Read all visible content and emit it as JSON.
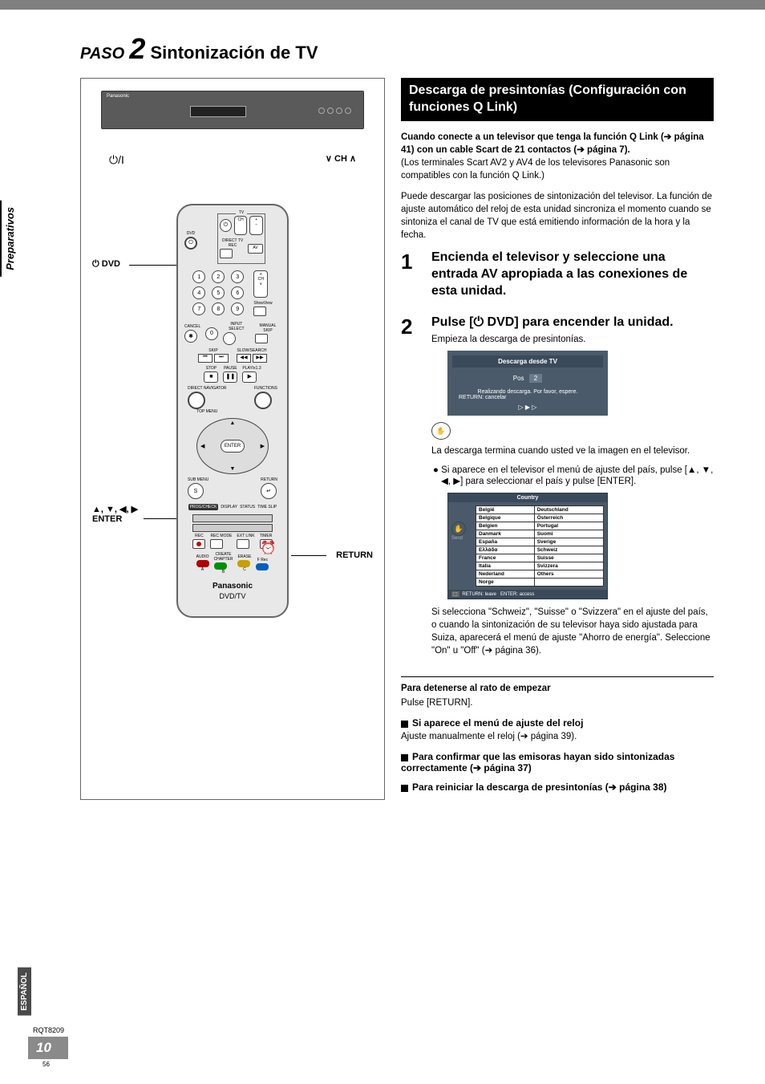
{
  "title": {
    "step_word": "PASO",
    "step_num": "2",
    "step_text": "Sintonización de TV"
  },
  "sidebar": {
    "section": "Preparativos",
    "lang": "ESPAÑOL"
  },
  "diagram": {
    "device_brand": "Panasonic",
    "power_icon": "⏻/I",
    "ch_label": "∨ CH ∧",
    "callouts": {
      "dvd": "⏻ DVD",
      "enter": "▲, ▼, ◀, ▶\nENTER",
      "return": "RETURN"
    },
    "remote": {
      "dvd_label": "DVD",
      "tv_label": "TV",
      "ch": "CH",
      "volume": "VOLUME",
      "direct_rec": "DIRECT TV REC",
      "av": "AV",
      "showview": "ShowView",
      "cancel": "CANCEL",
      "input_select": "INPUT SELECT",
      "manual_skip": "MANUAL SKIP",
      "skip": "SKIP",
      "slow": "SLOW/SEARCH",
      "stop": "STOP",
      "pause": "PAUSE",
      "play": "PLAY/x1.3",
      "direct_nav": "DIRECT NAVIGATOR",
      "functions": "FUNCTIONS",
      "top_menu": "TOP MENU",
      "enter": "ENTER",
      "sub_menu": "SUB MENU",
      "return": "RETURN",
      "prog_check": "PROG/CHECK",
      "display": "DISPLAY",
      "status": "STATUS",
      "time_slip": "TIME SLIP",
      "rec": "REC",
      "rec_mode": "REC MODE",
      "ext_link": "EXT LINK",
      "timer": "TIMER",
      "audio": "AUDIO",
      "create_chapter": "CREATE\nCHAPTER",
      "erase": "ERASE",
      "f_rec": "F Rec",
      "a": "A",
      "b": "B",
      "c": "C",
      "brand": "Panasonic",
      "model": "DVD/TV",
      "nums": [
        "1",
        "2",
        "3",
        "4",
        "5",
        "6",
        "7",
        "8",
        "9",
        "0"
      ],
      "s": "S",
      "colors": [
        "#b00000",
        "#009000",
        "#0060c0",
        "#c8a000"
      ]
    }
  },
  "right": {
    "header": "Descarga de presintonías (Configuración con funciones Q Link)",
    "p1_bold": "Cuando conecte a un televisor que tenga la función Q Link (➔ página 41) con un cable Scart de 21 contactos (➔ página 7).",
    "p1_rest": "(Los terminales Scart AV2 y AV4 de los televisores Panasonic son compatibles con la función Q Link.)",
    "p2": "Puede descargar las posiciones de sintonización del televisor. La función de ajuste automático del reloj de esta unidad sincroniza el momento cuando se sintoniza el canal de TV que está emitiendo información de la hora y la fecha.",
    "step1": {
      "n": "1",
      "head": "Encienda el televisor y seleccione una entrada AV apropiada a las conexiones de esta unidad."
    },
    "step2": {
      "n": "2",
      "head": "Pulse [⏻ DVD] para encender la unidad.",
      "sub": "Empieza la descarga de presintonías."
    },
    "screen1": {
      "title": "Descarga desde TV",
      "pos_label": "Pos",
      "pos_val": "2",
      "msg1": "Realizando descarga. Por favor, espere.",
      "msg2": "RETURN: cancelar",
      "arrows": "▷ ▶ ▷"
    },
    "after_screen": "La descarga termina cuando usted ve la imagen en el televisor.",
    "bullet1": "Si aparece en el televisor el menú de ajuste del país, pulse [▲, ▼, ◀, ▶] para seleccionar el país y pulse [ENTER].",
    "country": {
      "header": "Country",
      "side": "Send",
      "col1": [
        "België",
        "Belgique",
        "Belgien",
        "Danmark",
        "España",
        "Eλλάδα",
        "France",
        "Italia",
        "Nederland",
        "Norge"
      ],
      "col2": [
        "Deutschland",
        "Österreich",
        "Portugal",
        "Suomi",
        "Sverige",
        "Schweiz",
        "Suisse",
        "Svizzera",
        "Others",
        ""
      ],
      "footer_return": "RETURN: leave",
      "footer_enter": "ENTER: access"
    },
    "p3": "Si selecciona \"Schweiz\", \"Suisse\" o \"Svizzera\" en el ajuste del país, o cuando la sintonización de su televisor haya sido ajustada para Suiza, aparecerá el menú de ajuste \"Ahorro de energía\". Seleccione \"On\" u \"Off\" (➔ página 36).",
    "stop_head": "Para detenerse al rato de empezar",
    "stop_text": "Pulse [RETURN].",
    "sub1_head": "Si aparece el menú de ajuste del reloj",
    "sub1_text": "Ajuste manualmente el reloj (➔ página 39).",
    "sub2_head": "Para confirmar que las emisoras hayan sido sintonizadas correctamente (➔ página 37)",
    "sub3_head": "Para reiniciar la descarga de presintonías (➔ página 38)"
  },
  "footer": {
    "rqt": "RQT8209",
    "page": "10",
    "sub": "56"
  }
}
